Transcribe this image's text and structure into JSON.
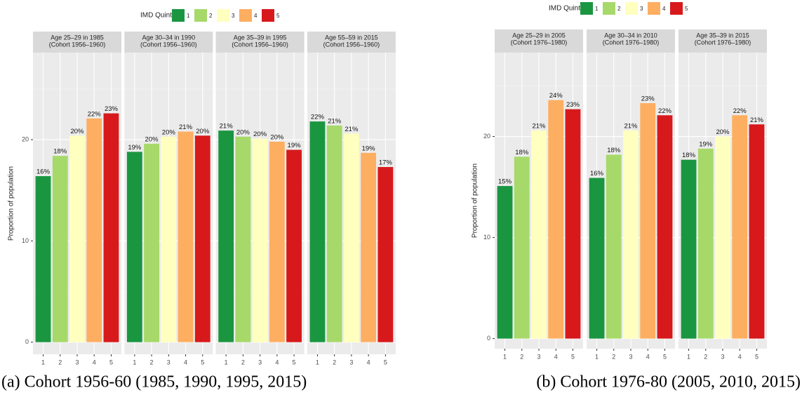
{
  "chart_data": [
    {
      "type": "bar",
      "legend_title": "IMD Quintiles",
      "y_label": "Proportion of population",
      "caption": "(a) Cohort 1956-60 (1985, 1990, 1995, 2015)",
      "categories": [
        "1",
        "2",
        "3",
        "4",
        "5"
      ],
      "colors": [
        "#1a9641",
        "#a6d96a",
        "#ffffbf",
        "#fdae61",
        "#d7191c"
      ],
      "ylim": [
        -1.2,
        28.6
      ],
      "yticks": [
        0,
        10,
        20
      ],
      "grid": true,
      "facets": [
        {
          "title": [
            "Age 25–29 in 1985",
            "(Cohort 1956–1960)"
          ],
          "values": [
            16.4,
            18.4,
            20.4,
            22.1,
            22.6
          ],
          "value_labels": [
            "16%",
            "18%",
            "20%",
            "22%",
            "23%"
          ]
        },
        {
          "title": [
            "Age 30–34 in 1990",
            "(Cohort 1956–1960)"
          ],
          "values": [
            18.8,
            19.6,
            20.3,
            20.8,
            20.4
          ],
          "value_labels": [
            "19%",
            "20%",
            "20%",
            "21%",
            "20%"
          ]
        },
        {
          "title": [
            "Age 35–39 in 1995",
            "(Cohort 1956–1960)"
          ],
          "values": [
            20.9,
            20.3,
            20.1,
            19.8,
            19.0
          ],
          "value_labels": [
            "21%",
            "20%",
            "20%",
            "20%",
            "19%"
          ]
        },
        {
          "title": [
            "Age 55–59 in 2015",
            "(Cohort 1956–1960)"
          ],
          "values": [
            21.8,
            21.4,
            20.6,
            18.7,
            17.3
          ],
          "value_labels": [
            "22%",
            "21%",
            "21%",
            "19%",
            "17%"
          ]
        }
      ]
    },
    {
      "type": "bar",
      "legend_title": "IMD Quintiles",
      "y_label": "Proportion of population",
      "caption": "(b) Cohort 1976-80 (2005, 2010, 2015)",
      "categories": [
        "1",
        "2",
        "3",
        "4",
        "5"
      ],
      "colors": [
        "#1a9641",
        "#a6d96a",
        "#ffffbf",
        "#fdae61",
        "#d7191c"
      ],
      "ylim": [
        -1.0,
        28.3
      ],
      "yticks": [
        0,
        10,
        20
      ],
      "grid": true,
      "facets": [
        {
          "title": [
            "Age 25–29 in 2005",
            "(Cohort 1976–1980)"
          ],
          "values": [
            15.1,
            18.0,
            20.6,
            23.6,
            22.7
          ],
          "value_labels": [
            "15%",
            "18%",
            "21%",
            "24%",
            "23%"
          ]
        },
        {
          "title": [
            "Age 30–34 in 2010",
            "(Cohort 1976–1980)"
          ],
          "values": [
            15.9,
            18.2,
            20.6,
            23.3,
            22.1
          ],
          "value_labels": [
            "16%",
            "18%",
            "21%",
            "23%",
            "22%"
          ]
        },
        {
          "title": [
            "Age 35–39 in 2015",
            "(Cohort 1976–1980)"
          ],
          "values": [
            17.7,
            18.8,
            20.0,
            22.1,
            21.2
          ],
          "value_labels": [
            "18%",
            "19%",
            "20%",
            "22%",
            "21%"
          ]
        }
      ]
    }
  ]
}
